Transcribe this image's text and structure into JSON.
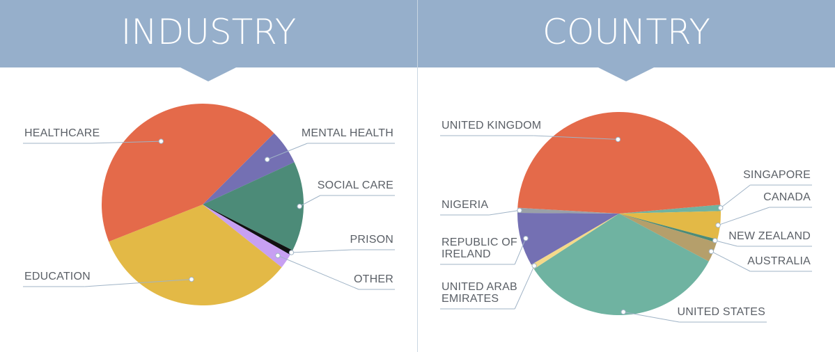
{
  "colors": {
    "banner": "#96afcb",
    "leader": "#9fb3c6",
    "label_text": "#5a5f66"
  },
  "chart_data": [
    {
      "type": "pie",
      "title": "INDUSTRY",
      "start_direction": "top-right, clockwise",
      "slices": [
        {
          "label": "MENTAL HEALTH",
          "value": 5.6,
          "color": "#7470b3"
        },
        {
          "label": "SOCIAL CARE",
          "value": 14.4,
          "color": "#4c8b78"
        },
        {
          "label": "PRISON",
          "value": 0.8,
          "color": "#111111"
        },
        {
          "label": "OTHER",
          "value": 2.4,
          "color": "#c7a0f2"
        },
        {
          "label": "EDUCATION",
          "value": 33.3,
          "color": "#e3b946"
        },
        {
          "label": "HEALTHCARE",
          "value": 43.5,
          "color": "#e46a4a"
        }
      ]
    },
    {
      "type": "pie",
      "title": "COUNTRY",
      "start_direction": "right, clockwise",
      "slices": [
        {
          "label": "SINGAPORE",
          "value": 1.0,
          "color": "#6fb3a1"
        },
        {
          "label": "CANADA",
          "value": 4.5,
          "color": "#e3b946"
        },
        {
          "label": "NEW ZEALAND",
          "value": 0.5,
          "color": "#4c8b78"
        },
        {
          "label": "AUSTRALIA",
          "value": 3.2,
          "color": "#b59f6b"
        },
        {
          "label": "UNITED STATES",
          "value": 33.0,
          "color": "#6fb3a1"
        },
        {
          "label": "UNITED ARAB EMIRATES",
          "value": 0.8,
          "color": "#f4d98a"
        },
        {
          "label": "REPUBLIC OF IRELAND",
          "value": 8.5,
          "color": "#7470b3"
        },
        {
          "label": "NIGERIA",
          "value": 0.8,
          "color": "#9aa0a8"
        },
        {
          "label": "UNITED KINGDOM",
          "value": 47.7,
          "color": "#e46a4a"
        }
      ]
    }
  ]
}
